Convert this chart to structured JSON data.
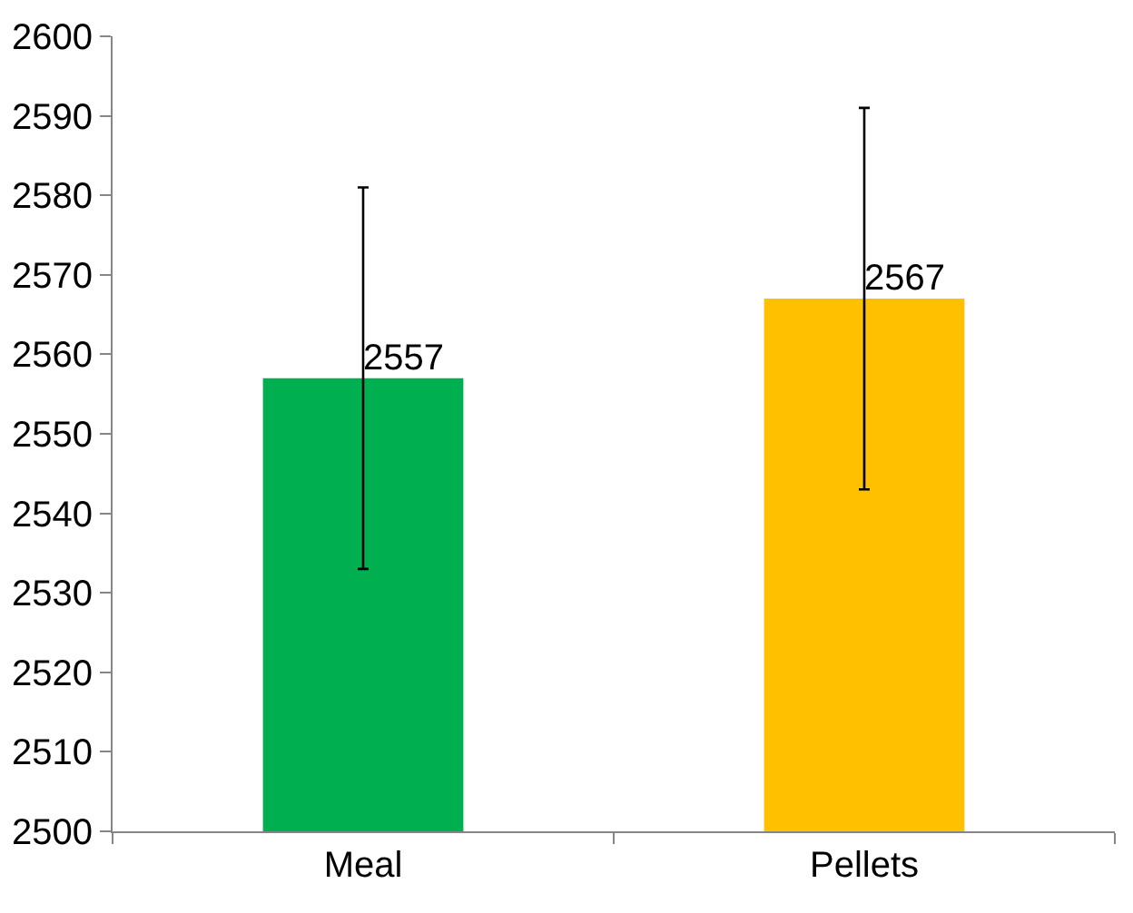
{
  "chart_data": {
    "type": "bar",
    "categories": [
      "Meal",
      "Pellets"
    ],
    "values": [
      2557,
      2567
    ],
    "colors": [
      "#00b050",
      "#ffc000"
    ],
    "errors": [
      24,
      24
    ],
    "data_labels": true,
    "ylim": [
      2500,
      2600
    ],
    "yticks": [
      2500,
      2510,
      2520,
      2530,
      2540,
      2550,
      2560,
      2570,
      2580,
      2590,
      2600
    ],
    "grid": false
  }
}
